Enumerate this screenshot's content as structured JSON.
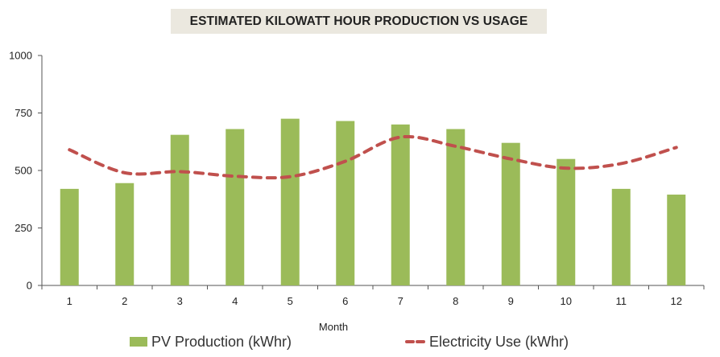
{
  "chart_data": {
    "type": "bar",
    "title": "ESTIMATED KILOWATT HOUR PRODUCTION VS USAGE",
    "xlabel": "Month",
    "ylabel": "",
    "ylim": [
      0,
      1000
    ],
    "yticks": [
      0,
      250,
      500,
      750,
      1000
    ],
    "categories": [
      "1",
      "2",
      "3",
      "4",
      "5",
      "6",
      "7",
      "8",
      "9",
      "10",
      "11",
      "12"
    ],
    "series": [
      {
        "name": "PV Production (kWhr)",
        "kind": "bar",
        "color": "#9bbb59",
        "values": [
          420,
          445,
          655,
          680,
          725,
          715,
          700,
          680,
          620,
          550,
          420,
          395
        ]
      },
      {
        "name": "Electricity Use (kWhr)",
        "kind": "line-dashed",
        "color": "#c0504d",
        "values": [
          590,
          490,
          495,
          475,
          473,
          540,
          645,
          605,
          550,
          510,
          530,
          600
        ]
      }
    ],
    "legend_position": "bottom"
  }
}
